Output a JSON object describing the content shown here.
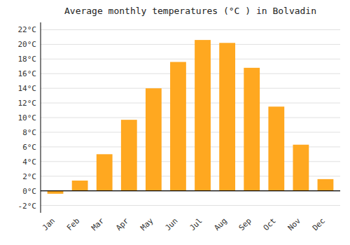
{
  "chart_data": {
    "type": "bar",
    "title": "Average monthly temperatures (°C ) in Bolvadin",
    "categories": [
      "Jan",
      "Feb",
      "Mar",
      "Apr",
      "May",
      "Jun",
      "Jul",
      "Aug",
      "Sep",
      "Oct",
      "Nov",
      "Dec"
    ],
    "values": [
      -0.4,
      1.4,
      5.0,
      9.7,
      14.0,
      17.6,
      20.6,
      20.2,
      16.8,
      11.5,
      6.3,
      1.6
    ],
    "color": "#FFA820",
    "ylim": [
      -3,
      23
    ],
    "yticks": [
      {
        "value": -2,
        "label": "-2°C"
      },
      {
        "value": 0,
        "label": "0°C"
      },
      {
        "value": 2,
        "label": "2°C"
      },
      {
        "value": 4,
        "label": "4°C"
      },
      {
        "value": 6,
        "label": "6°C"
      },
      {
        "value": 8,
        "label": "8°C"
      },
      {
        "value": 10,
        "label": "10°C"
      },
      {
        "value": 12,
        "label": "12°C"
      },
      {
        "value": 14,
        "label": "14°C"
      },
      {
        "value": 16,
        "label": "16°C"
      },
      {
        "value": 18,
        "label": "18°C"
      },
      {
        "value": 20,
        "label": "20°C"
      },
      {
        "value": 22,
        "label": "22°C"
      }
    ],
    "grid": true
  }
}
